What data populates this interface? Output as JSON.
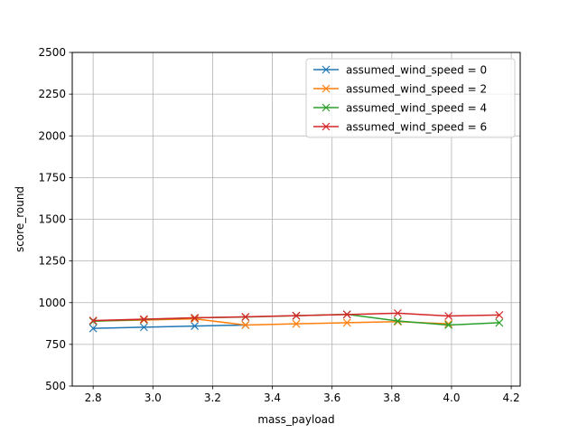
{
  "chart_data": {
    "type": "line",
    "xlabel": "mass_payload",
    "ylabel": "score_round",
    "xlim": [
      2.73,
      4.23
    ],
    "ylim": [
      500,
      2500
    ],
    "xticks": [
      "2.8",
      "3.0",
      "3.2",
      "3.4",
      "3.6",
      "3.8",
      "4.0",
      "4.2"
    ],
    "xtick_values": [
      2.8,
      3.0,
      3.2,
      3.4,
      3.6,
      3.8,
      4.0,
      4.2
    ],
    "yticks": [
      "500",
      "750",
      "1000",
      "1250",
      "1500",
      "1750",
      "2000",
      "2250",
      "2500"
    ],
    "ytick_values": [
      500,
      750,
      1000,
      1250,
      1500,
      1750,
      2000,
      2250,
      2500
    ],
    "grid": true,
    "legend_position": "top-right",
    "marker": "x",
    "series": [
      {
        "name": "assumed_wind_speed = 0",
        "color": "#1f77b4",
        "x": [
          2.8,
          2.97,
          3.14,
          3.31
        ],
        "y": [
          846,
          853,
          860,
          866
        ]
      },
      {
        "name": "assumed_wind_speed = 2",
        "color": "#ff7f0e",
        "x": [
          2.8,
          2.97,
          3.14,
          3.31,
          3.48,
          3.65,
          3.82,
          3.99
        ],
        "y": [
          889,
          896,
          903,
          866,
          873,
          880,
          886,
          873
        ]
      },
      {
        "name": "assumed_wind_speed = 4",
        "color": "#2ca02c",
        "x": [
          2.8,
          2.97,
          3.14,
          3.31,
          3.48,
          3.65,
          3.82,
          3.99,
          4.16
        ],
        "y": [
          889,
          899,
          909,
          914,
          922,
          930,
          890,
          866,
          880
        ]
      },
      {
        "name": "assumed_wind_speed = 6",
        "color": "#d62728",
        "x": [
          2.8,
          2.97,
          3.14,
          3.31,
          3.48,
          3.65,
          3.82,
          3.99,
          4.16
        ],
        "y": [
          893,
          901,
          909,
          915,
          922,
          929,
          937,
          920,
          926
        ]
      }
    ]
  }
}
